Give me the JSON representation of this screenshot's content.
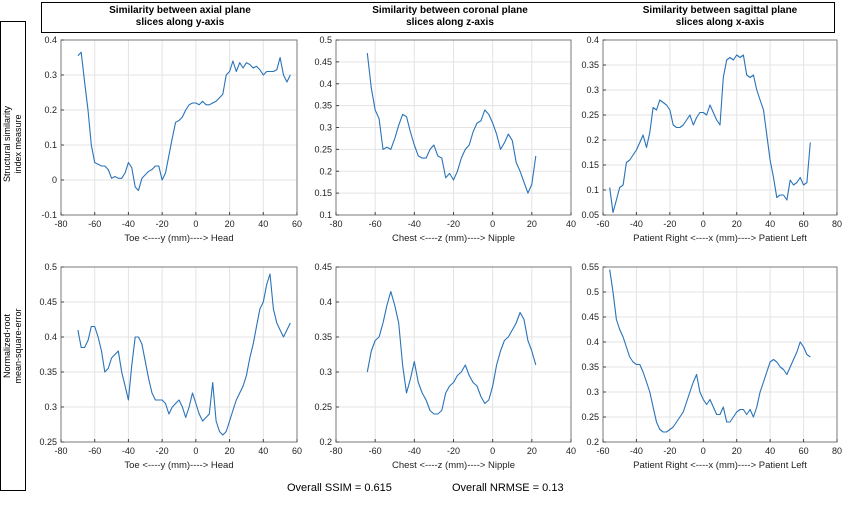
{
  "column_titles": [
    "Similarity between axial plane\nslices along y-axis",
    "Similarity between coronal plane\nslices along z-axis",
    "Similarity between sagittal plane\nslices along x-axis"
  ],
  "row_labels": [
    "Structural similarity\nindex measure",
    "Normalized-root\nmean-square-error"
  ],
  "footer": {
    "ssim": "Overall SSIM = 0.615",
    "nrmse": "Overall NRMSE = 0.13"
  },
  "line_color": "#2a73b8",
  "chart_data": [
    {
      "type": "line",
      "xlabel": "Toe <----y (mm)----> Head",
      "xlim": [
        -80,
        60
      ],
      "xticks": [
        -80,
        -60,
        -40,
        -20,
        0,
        20,
        40,
        60
      ],
      "ylim": [
        -0.1,
        0.4
      ],
      "yticks": [
        -0.1,
        0,
        0.1,
        0.2,
        0.3,
        0.4
      ],
      "grid": true,
      "x": [
        -70,
        -68,
        -66,
        -64,
        -62,
        -60,
        -58,
        -56,
        -54,
        -52,
        -50,
        -48,
        -46,
        -44,
        -42,
        -40,
        -38,
        -36,
        -34,
        -32,
        -30,
        -28,
        -26,
        -24,
        -22,
        -20,
        -18,
        -16,
        -14,
        -12,
        -10,
        -8,
        -6,
        -4,
        -2,
        0,
        2,
        4,
        6,
        8,
        10,
        12,
        14,
        16,
        18,
        20,
        22,
        24,
        26,
        28,
        30,
        32,
        34,
        36,
        38,
        40,
        42,
        44,
        46,
        48,
        50,
        52,
        54,
        56
      ],
      "y": [
        0.355,
        0.365,
        0.28,
        0.2,
        0.1,
        0.05,
        0.045,
        0.04,
        0.04,
        0.03,
        0.005,
        0.01,
        0.005,
        0.005,
        0.02,
        0.05,
        0.035,
        -0.02,
        -0.03,
        0.005,
        0.015,
        0.025,
        0.03,
        0.04,
        0.04,
        0,
        0.02,
        0.07,
        0.12,
        0.165,
        0.17,
        0.18,
        0.2,
        0.215,
        0.22,
        0.22,
        0.215,
        0.225,
        0.215,
        0.215,
        0.22,
        0.225,
        0.235,
        0.245,
        0.3,
        0.31,
        0.34,
        0.31,
        0.335,
        0.32,
        0.335,
        0.33,
        0.32,
        0.325,
        0.315,
        0.3,
        0.31,
        0.31,
        0.31,
        0.315,
        0.35,
        0.3,
        0.28,
        0.3
      ]
    },
    {
      "type": "line",
      "xlabel": "Chest <----z (mm)----> Nipple",
      "xlim": [
        -80,
        40
      ],
      "xticks": [
        -80,
        -60,
        -40,
        -20,
        0,
        20,
        40
      ],
      "ylim": [
        0.1,
        0.5
      ],
      "yticks": [
        0.1,
        0.15,
        0.2,
        0.25,
        0.3,
        0.35,
        0.4,
        0.45,
        0.5
      ],
      "grid": true,
      "x": [
        -64,
        -62,
        -60,
        -58,
        -56,
        -54,
        -52,
        -50,
        -48,
        -46,
        -44,
        -42,
        -40,
        -38,
        -36,
        -34,
        -32,
        -30,
        -28,
        -26,
        -24,
        -22,
        -20,
        -18,
        -16,
        -14,
        -12,
        -10,
        -8,
        -6,
        -4,
        -2,
        0,
        2,
        4,
        6,
        8,
        10,
        12,
        14,
        16,
        18,
        20,
        22
      ],
      "y": [
        0.47,
        0.39,
        0.34,
        0.32,
        0.25,
        0.255,
        0.25,
        0.275,
        0.305,
        0.33,
        0.325,
        0.29,
        0.26,
        0.235,
        0.23,
        0.23,
        0.25,
        0.26,
        0.235,
        0.23,
        0.185,
        0.195,
        0.18,
        0.2,
        0.23,
        0.25,
        0.26,
        0.29,
        0.31,
        0.315,
        0.34,
        0.33,
        0.31,
        0.285,
        0.25,
        0.265,
        0.285,
        0.27,
        0.22,
        0.2,
        0.175,
        0.15,
        0.17,
        0.235
      ]
    },
    {
      "type": "line",
      "xlabel": "Patient Right <----x (mm)----> Patient Left",
      "xlim": [
        -60,
        80
      ],
      "xticks": [
        -60,
        -40,
        -20,
        0,
        20,
        40,
        60,
        80
      ],
      "ylim": [
        0.05,
        0.4
      ],
      "yticks": [
        0.05,
        0.1,
        0.15,
        0.2,
        0.25,
        0.3,
        0.35,
        0.4
      ],
      "grid": true,
      "x": [
        -56,
        -54,
        -52,
        -50,
        -48,
        -46,
        -44,
        -42,
        -40,
        -38,
        -36,
        -34,
        -32,
        -30,
        -28,
        -26,
        -24,
        -22,
        -20,
        -18,
        -16,
        -14,
        -12,
        -10,
        -8,
        -6,
        -4,
        -2,
        0,
        2,
        4,
        6,
        8,
        10,
        12,
        14,
        16,
        18,
        20,
        22,
        24,
        26,
        28,
        30,
        32,
        34,
        36,
        38,
        40,
        42,
        44,
        46,
        48,
        50,
        52,
        54,
        56,
        58,
        60,
        62,
        64
      ],
      "y": [
        0.105,
        0.055,
        0.08,
        0.105,
        0.11,
        0.155,
        0.16,
        0.17,
        0.18,
        0.195,
        0.21,
        0.185,
        0.215,
        0.265,
        0.26,
        0.28,
        0.275,
        0.27,
        0.26,
        0.23,
        0.225,
        0.225,
        0.23,
        0.24,
        0.25,
        0.23,
        0.245,
        0.255,
        0.255,
        0.25,
        0.27,
        0.255,
        0.24,
        0.23,
        0.325,
        0.36,
        0.365,
        0.36,
        0.37,
        0.365,
        0.37,
        0.33,
        0.325,
        0.33,
        0.3,
        0.28,
        0.26,
        0.21,
        0.16,
        0.125,
        0.085,
        0.09,
        0.09,
        0.08,
        0.12,
        0.11,
        0.115,
        0.125,
        0.11,
        0.115,
        0.195
      ]
    },
    {
      "type": "line",
      "xlabel": "Toe <----y (mm)----> Head",
      "xlim": [
        -80,
        60
      ],
      "xticks": [
        -80,
        -60,
        -40,
        -20,
        0,
        20,
        40,
        60
      ],
      "ylim": [
        0.25,
        0.5
      ],
      "yticks": [
        0.25,
        0.3,
        0.35,
        0.4,
        0.45,
        0.5
      ],
      "grid": true,
      "x": [
        -70,
        -68,
        -66,
        -64,
        -62,
        -60,
        -58,
        -56,
        -54,
        -52,
        -50,
        -48,
        -46,
        -44,
        -42,
        -40,
        -38,
        -36,
        -34,
        -32,
        -30,
        -28,
        -26,
        -24,
        -22,
        -20,
        -18,
        -16,
        -14,
        -12,
        -10,
        -8,
        -6,
        -4,
        -2,
        0,
        2,
        4,
        6,
        8,
        10,
        12,
        14,
        16,
        18,
        20,
        22,
        24,
        26,
        28,
        30,
        32,
        34,
        36,
        38,
        40,
        42,
        44,
        46,
        48,
        50,
        52,
        54,
        56
      ],
      "y": [
        0.41,
        0.385,
        0.385,
        0.395,
        0.415,
        0.415,
        0.4,
        0.38,
        0.35,
        0.355,
        0.37,
        0.375,
        0.38,
        0.35,
        0.33,
        0.31,
        0.36,
        0.4,
        0.4,
        0.39,
        0.365,
        0.34,
        0.32,
        0.31,
        0.31,
        0.31,
        0.305,
        0.29,
        0.3,
        0.305,
        0.31,
        0.3,
        0.285,
        0.3,
        0.32,
        0.305,
        0.29,
        0.28,
        0.285,
        0.29,
        0.335,
        0.28,
        0.265,
        0.26,
        0.265,
        0.28,
        0.295,
        0.31,
        0.32,
        0.33,
        0.345,
        0.37,
        0.39,
        0.415,
        0.44,
        0.45,
        0.475,
        0.49,
        0.44,
        0.42,
        0.41,
        0.4,
        0.41,
        0.42
      ]
    },
    {
      "type": "line",
      "xlabel": "Chest <----z (mm)----> Nipple",
      "xlim": [
        -80,
        40
      ],
      "xticks": [
        -80,
        -60,
        -40,
        -20,
        0,
        20,
        40
      ],
      "ylim": [
        0.2,
        0.45
      ],
      "yticks": [
        0.2,
        0.25,
        0.3,
        0.35,
        0.4,
        0.45
      ],
      "grid": true,
      "x": [
        -64,
        -62,
        -60,
        -58,
        -56,
        -54,
        -52,
        -50,
        -48,
        -46,
        -44,
        -42,
        -40,
        -38,
        -36,
        -34,
        -32,
        -30,
        -28,
        -26,
        -24,
        -22,
        -20,
        -18,
        -16,
        -14,
        -12,
        -10,
        -8,
        -6,
        -4,
        -2,
        0,
        2,
        4,
        6,
        8,
        10,
        12,
        14,
        16,
        18,
        20,
        22
      ],
      "y": [
        0.3,
        0.33,
        0.345,
        0.35,
        0.37,
        0.395,
        0.415,
        0.395,
        0.37,
        0.31,
        0.27,
        0.29,
        0.315,
        0.285,
        0.27,
        0.26,
        0.245,
        0.24,
        0.24,
        0.245,
        0.27,
        0.28,
        0.285,
        0.295,
        0.3,
        0.31,
        0.295,
        0.285,
        0.28,
        0.265,
        0.255,
        0.26,
        0.28,
        0.31,
        0.33,
        0.345,
        0.35,
        0.36,
        0.37,
        0.385,
        0.375,
        0.345,
        0.33,
        0.31
      ]
    },
    {
      "type": "line",
      "xlabel": "Patient Right <----x (mm)----> Patient Left",
      "xlim": [
        -60,
        80
      ],
      "xticks": [
        -60,
        -40,
        -20,
        0,
        20,
        40,
        60,
        80
      ],
      "ylim": [
        0.2,
        0.55
      ],
      "yticks": [
        0.2,
        0.25,
        0.3,
        0.35,
        0.4,
        0.45,
        0.5,
        0.55
      ],
      "grid": true,
      "x": [
        -56,
        -54,
        -52,
        -50,
        -48,
        -46,
        -44,
        -42,
        -40,
        -38,
        -36,
        -34,
        -32,
        -30,
        -28,
        -26,
        -24,
        -22,
        -20,
        -18,
        -16,
        -14,
        -12,
        -10,
        -8,
        -6,
        -4,
        -2,
        0,
        2,
        4,
        6,
        8,
        10,
        12,
        14,
        16,
        18,
        20,
        22,
        24,
        26,
        28,
        30,
        32,
        34,
        36,
        38,
        40,
        42,
        44,
        46,
        48,
        50,
        52,
        54,
        56,
        58,
        60,
        62,
        64
      ],
      "y": [
        0.545,
        0.5,
        0.445,
        0.425,
        0.41,
        0.39,
        0.37,
        0.36,
        0.355,
        0.355,
        0.34,
        0.32,
        0.3,
        0.27,
        0.24,
        0.225,
        0.22,
        0.22,
        0.225,
        0.23,
        0.24,
        0.25,
        0.26,
        0.28,
        0.3,
        0.32,
        0.335,
        0.3,
        0.285,
        0.275,
        0.285,
        0.27,
        0.255,
        0.255,
        0.27,
        0.24,
        0.24,
        0.25,
        0.26,
        0.265,
        0.265,
        0.255,
        0.265,
        0.25,
        0.27,
        0.3,
        0.32,
        0.34,
        0.36,
        0.365,
        0.36,
        0.35,
        0.345,
        0.335,
        0.35,
        0.365,
        0.38,
        0.4,
        0.39,
        0.375,
        0.37
      ]
    }
  ]
}
